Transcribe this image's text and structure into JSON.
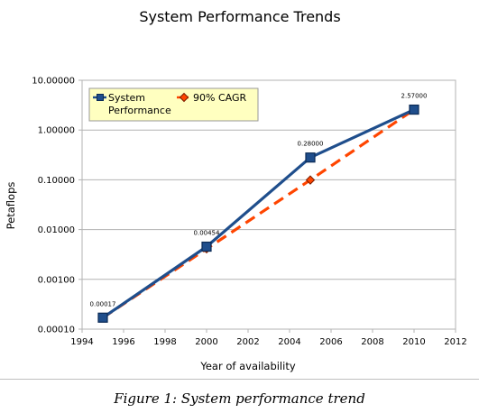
{
  "caption": "Figure 1: System performance trend",
  "chart_data": {
    "type": "line",
    "title": "System Performance Trends",
    "xlabel": "Year of availability",
    "ylabel": "Petaflops",
    "xlim": [
      1994,
      2012
    ],
    "x_ticks": [
      "1994",
      "1996",
      "1998",
      "2000",
      "2002",
      "2004",
      "2006",
      "2008",
      "2010",
      "2012"
    ],
    "ylim": [
      0.0001,
      10
    ],
    "y_scale": "log",
    "y_ticks": [
      "0.00010",
      "0.00100",
      "0.01000",
      "0.10000",
      "1.00000",
      "10.00000"
    ],
    "grid": "horizontal",
    "legend_position": "top-left",
    "series": [
      {
        "name": "System Performance",
        "legend_line1": "System",
        "legend_line2": "Performance",
        "color": "#1f4e8c",
        "marker": "square",
        "style": "solid",
        "x": [
          1995,
          2000,
          2005,
          2010
        ],
        "y": [
          0.00017,
          0.00454,
          0.28,
          2.57
        ],
        "labels": [
          "0.00017",
          "0.00454",
          "0.28000",
          "2.57000"
        ]
      },
      {
        "name": "90% CAGR",
        "color": "#ff4500",
        "marker": "diamond",
        "style": "dashed",
        "x": [
          1995,
          2000,
          2005,
          2010
        ],
        "y": [
          0.00017,
          0.0041,
          0.099,
          2.57
        ]
      }
    ]
  }
}
